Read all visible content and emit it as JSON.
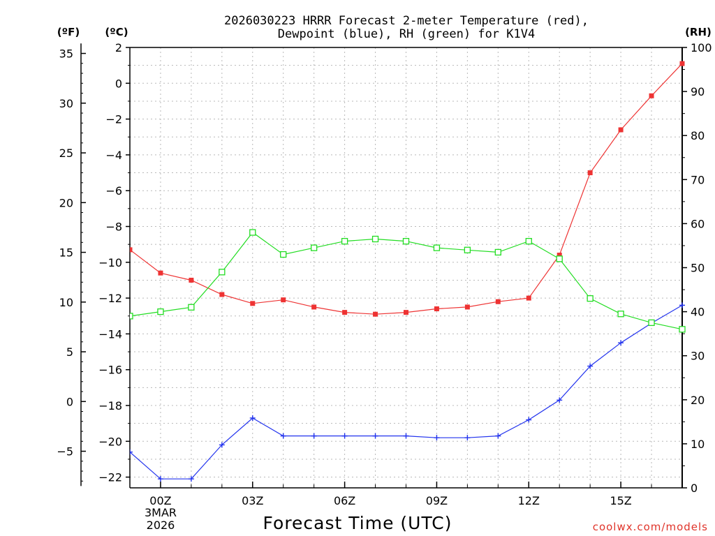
{
  "chart_data": {
    "type": "line",
    "title": "2026030223 HRRR Forecast 2-meter Temperature (red),",
    "subtitle": "Dewpoint (blue), RH (green) for K1V4",
    "xlabel": "Forecast Time (UTC)",
    "credit": "coolwx.com/models",
    "x_ticks": [
      "00Z",
      "03Z",
      "06Z",
      "09Z",
      "12Z",
      "15Z"
    ],
    "x_tick_hours": [
      0,
      3,
      6,
      9,
      12,
      15
    ],
    "date_label_line1": "3MAR",
    "date_label_line2": "2026",
    "x_range": [
      -1,
      17
    ],
    "x_hours": [
      -1,
      0,
      1,
      2,
      3,
      4,
      5,
      6,
      7,
      8,
      9,
      10,
      11,
      12,
      13,
      14,
      15,
      16,
      17
    ],
    "left_f_unit": "(ºF)",
    "left_c_unit": "(ºC)",
    "right_unit": "(RH)",
    "c_ticks": [
      "2",
      "0",
      "−2",
      "−4",
      "−6",
      "−8",
      "−10",
      "−12",
      "−14",
      "−16",
      "−18",
      "−20",
      "−22"
    ],
    "c_tick_values": [
      2,
      0,
      -2,
      -4,
      -6,
      -8,
      -10,
      -12,
      -14,
      -16,
      -18,
      -20,
      -22
    ],
    "f_ticks": [
      "35",
      "30",
      "25",
      "20",
      "15",
      "10",
      "5",
      "0",
      "−5"
    ],
    "f_tick_values": [
      35,
      30,
      25,
      20,
      15,
      10,
      5,
      0,
      -5
    ],
    "rh_ticks": [
      "100",
      "90",
      "80",
      "70",
      "60",
      "50",
      "40",
      "30",
      "20",
      "10",
      "0"
    ],
    "rh_tick_values": [
      100,
      90,
      80,
      70,
      60,
      50,
      40,
      30,
      20,
      10,
      0
    ],
    "c_range": [
      -22.6,
      2.0
    ],
    "rh_range": [
      0,
      100
    ],
    "series": [
      {
        "name": "Temperature",
        "color": "#ee3333",
        "marker": "filled-square",
        "axis": "celsius",
        "values": [
          -9.3,
          -10.6,
          -11.0,
          -11.8,
          -12.3,
          -12.1,
          -12.5,
          -12.8,
          -12.9,
          -12.8,
          -12.6,
          -12.5,
          -12.2,
          -12.0,
          -9.6,
          -5.0,
          -2.6,
          -0.7,
          1.1
        ]
      },
      {
        "name": "Dewpoint",
        "color": "#2233ee",
        "marker": "plus",
        "axis": "celsius",
        "values": [
          -20.6,
          -22.1,
          -22.1,
          -20.2,
          -18.7,
          -19.7,
          -19.7,
          -19.7,
          -19.7,
          -19.7,
          -19.8,
          -19.8,
          -19.7,
          -18.8,
          -17.7,
          -15.8,
          -14.5,
          -13.4,
          -12.4
        ]
      },
      {
        "name": "RH",
        "color": "#22dd22",
        "marker": "open-square",
        "axis": "rh",
        "values": [
          39,
          40,
          41,
          49,
          58,
          53,
          54.5,
          56,
          56.5,
          56,
          54.5,
          54,
          53.5,
          56,
          52,
          43,
          39.5,
          37.5,
          36
        ]
      }
    ],
    "grid": true
  }
}
